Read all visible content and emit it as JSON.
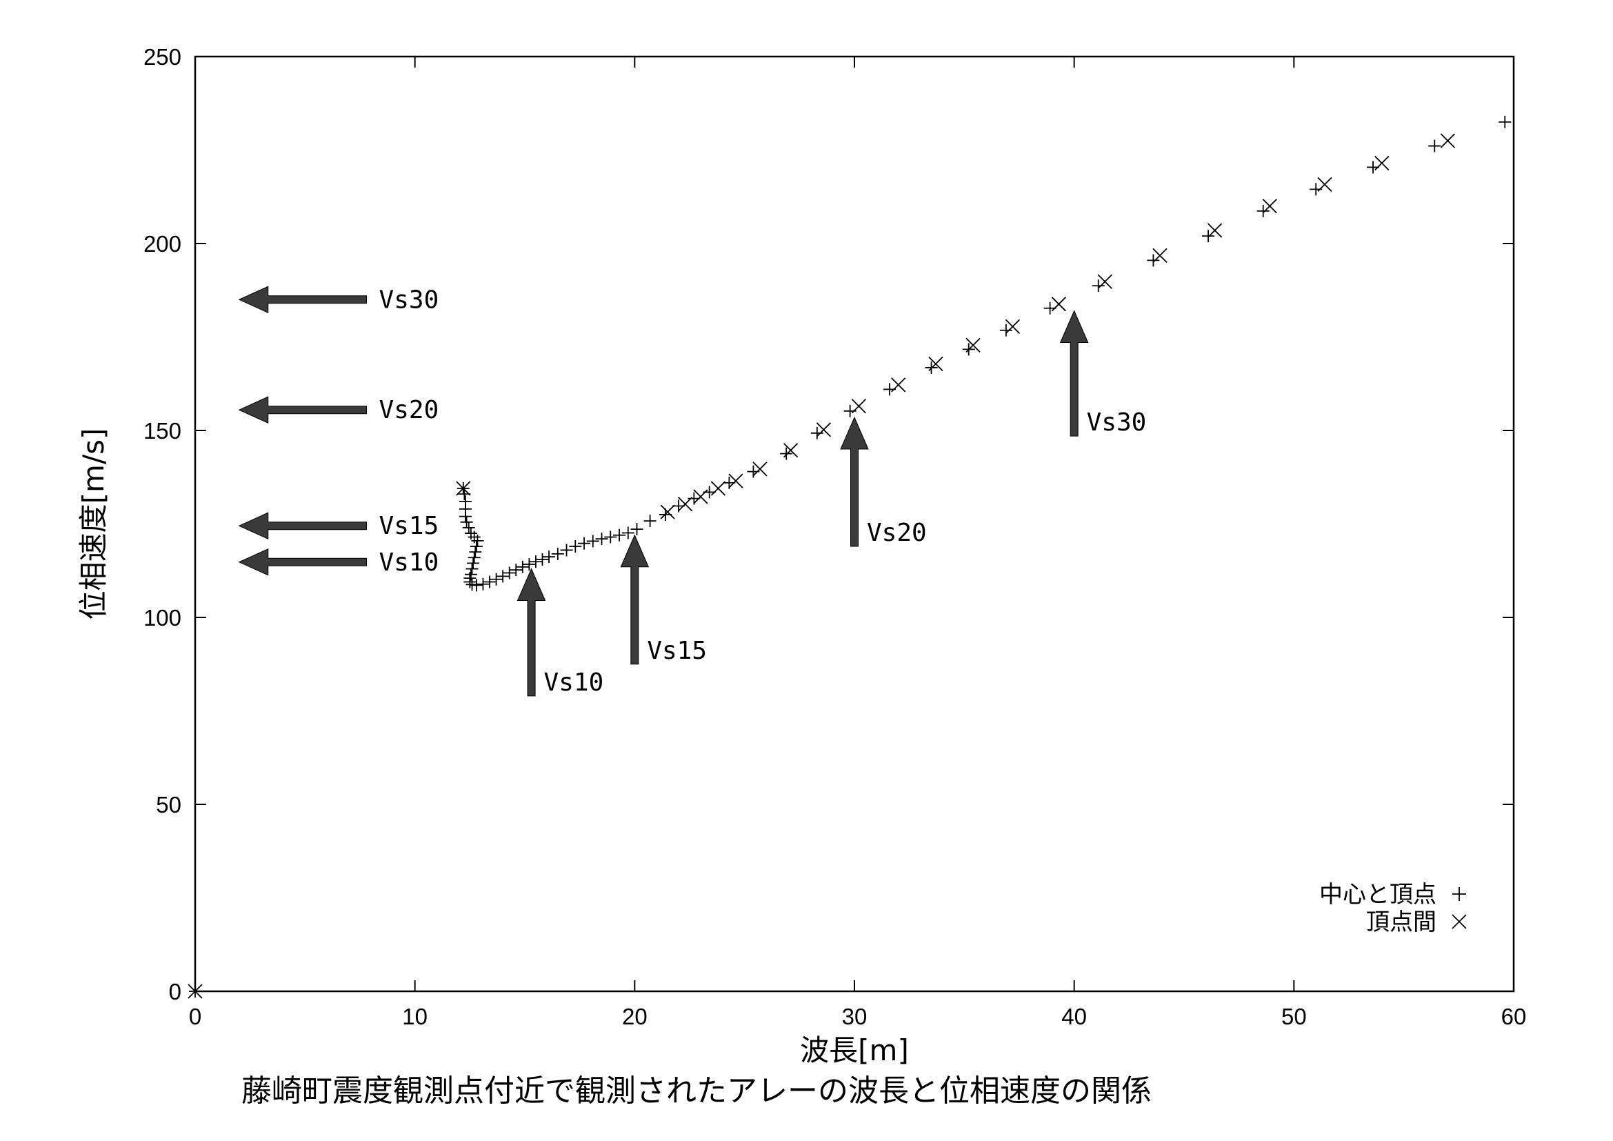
{
  "caption": "藤崎町震度観測点付近で観測されたアレーの波長と位相速度の関係",
  "chart_data": {
    "type": "scatter",
    "title": "",
    "xlabel": "波長[m]",
    "ylabel": "位相速度[m/s]",
    "xlim": [
      0,
      60
    ],
    "ylim": [
      0,
      250
    ],
    "x_ticks": [
      0,
      10,
      20,
      30,
      40,
      50,
      60
    ],
    "y_ticks": [
      0,
      50,
      100,
      150,
      200,
      250
    ],
    "grid": false,
    "legend_position": "bottom-right",
    "series": [
      {
        "name": "中心と頂点",
        "marker": "plus",
        "points": [
          [
            12.2,
            134.5
          ],
          [
            12.25,
            133
          ],
          [
            12.3,
            131
          ],
          [
            12.3,
            129
          ],
          [
            12.3,
            127
          ],
          [
            12.35,
            125.5
          ],
          [
            12.45,
            124
          ],
          [
            12.55,
            122.5
          ],
          [
            12.7,
            121.5
          ],
          [
            12.85,
            120.5
          ],
          [
            12.8,
            119
          ],
          [
            12.75,
            117.5
          ],
          [
            12.7,
            116
          ],
          [
            12.65,
            114.5
          ],
          [
            12.6,
            113
          ],
          [
            12.55,
            111.5
          ],
          [
            12.5,
            110.5
          ],
          [
            12.5,
            109.5
          ],
          [
            12.6,
            108.8
          ],
          [
            12.8,
            108.6
          ],
          [
            13.1,
            108.9
          ],
          [
            13.4,
            109.5
          ],
          [
            13.7,
            110.2
          ],
          [
            14.0,
            111.0
          ],
          [
            14.3,
            111.9
          ],
          [
            14.6,
            112.7
          ],
          [
            14.9,
            113.5
          ],
          [
            15.2,
            114.2
          ],
          [
            15.5,
            114.9
          ],
          [
            15.8,
            115.5
          ],
          [
            16.1,
            116.2
          ],
          [
            16.5,
            117
          ],
          [
            16.9,
            118
          ],
          [
            17.3,
            119
          ],
          [
            17.7,
            119.8
          ],
          [
            18.1,
            120.4
          ],
          [
            18.5,
            121
          ],
          [
            18.9,
            121.5
          ],
          [
            19.3,
            122
          ],
          [
            19.7,
            122.6
          ],
          [
            20.1,
            123.6
          ],
          [
            20.7,
            125.8
          ],
          [
            21.4,
            127.5
          ],
          [
            22.0,
            129.8
          ],
          [
            22.7,
            131.8
          ],
          [
            23.4,
            133.5
          ],
          [
            24.3,
            136
          ],
          [
            25.4,
            139
          ],
          [
            26.9,
            143.8
          ],
          [
            28.3,
            149.3
          ],
          [
            29.8,
            155.2
          ],
          [
            31.6,
            161
          ],
          [
            33.5,
            166.8
          ],
          [
            35.2,
            171.7
          ],
          [
            36.9,
            176.8
          ],
          [
            38.9,
            182.7
          ],
          [
            41.1,
            188.7
          ],
          [
            43.6,
            195.5
          ],
          [
            46.1,
            202
          ],
          [
            48.6,
            208.7
          ],
          [
            51.0,
            214.5
          ],
          [
            53.6,
            220.4
          ],
          [
            56.4,
            226.1
          ],
          [
            59.6,
            232.5
          ],
          [
            0.0,
            0.0
          ]
        ]
      },
      {
        "name": "頂点間",
        "marker": "cross",
        "points": [
          [
            0.0,
            0.0
          ],
          [
            12.2,
            134.5
          ],
          [
            21.5,
            128.2
          ],
          [
            22.3,
            130.3
          ],
          [
            23.0,
            132.3
          ],
          [
            23.8,
            134.5
          ],
          [
            24.6,
            136.5
          ],
          [
            25.7,
            139.7
          ],
          [
            27.1,
            144.7
          ],
          [
            28.6,
            150.2
          ],
          [
            30.2,
            156.5
          ],
          [
            32.0,
            162.2
          ],
          [
            33.7,
            167.8
          ],
          [
            35.4,
            172.8
          ],
          [
            37.2,
            177.8
          ],
          [
            39.3,
            183.8
          ],
          [
            41.4,
            189.8
          ],
          [
            43.9,
            196.8
          ],
          [
            46.4,
            203.5
          ],
          [
            48.9,
            210.0
          ],
          [
            51.4,
            215.8
          ],
          [
            54.0,
            221.5
          ],
          [
            57.0,
            227.5
          ]
        ]
      }
    ],
    "annotations": [
      {
        "label": "Vs30",
        "direction": "left",
        "y": 185.0,
        "x_from": 7.8,
        "x_to": 2.0
      },
      {
        "label": "Vs20",
        "direction": "left",
        "y": 155.5,
        "x_from": 7.8,
        "x_to": 2.0
      },
      {
        "label": "Vs15",
        "direction": "left",
        "y": 124.5,
        "x_from": 7.8,
        "x_to": 2.0
      },
      {
        "label": "Vs10",
        "direction": "left",
        "y": 114.8,
        "x_from": 7.8,
        "x_to": 2.0
      },
      {
        "label": "Vs10",
        "direction": "up",
        "x": 15.3,
        "y_from": 79,
        "y_to": 113
      },
      {
        "label": "Vs15",
        "direction": "up",
        "x": 20.0,
        "y_from": 87.5,
        "y_to": 122
      },
      {
        "label": "Vs20",
        "direction": "up",
        "x": 30.0,
        "y_from": 119,
        "y_to": 153.5
      },
      {
        "label": "Vs30",
        "direction": "up",
        "x": 40.0,
        "y_from": 148.5,
        "y_to": 182
      }
    ]
  }
}
